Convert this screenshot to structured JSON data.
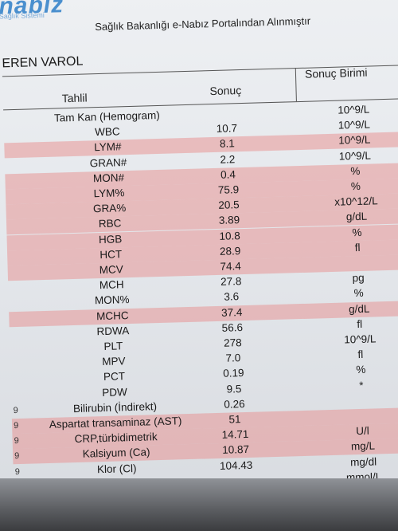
{
  "header": {
    "logo_text": "nabiz",
    "logo_sub": "Sağlık Sistemi",
    "portal_title": "Sağlık Bakanlığı e-Nabız Portalından Alınmıştır"
  },
  "patient": {
    "name": "EREN VAROL"
  },
  "columns": {
    "test": "Tahlil",
    "result": "Sonuç",
    "unit": "Sonuç Birimi"
  },
  "colors": {
    "highlight": "#e79696",
    "logo": "#4a8fce"
  },
  "rows": [
    {
      "name": "Tam Kan (Hemogram)",
      "value": "",
      "unit": "10^9/L",
      "highlight": false
    },
    {
      "name": "WBC",
      "value": "10.7",
      "unit": "10^9/L",
      "highlight": false
    },
    {
      "name": "LYM#",
      "value": "8.1",
      "unit": "10^9/L",
      "highlight": true
    },
    {
      "name": "GRAN#",
      "value": "2.2",
      "unit": "10^9/L",
      "highlight": false
    },
    {
      "name": "MON#",
      "value": "0.4",
      "unit": "%",
      "highlight": true
    },
    {
      "name": "LYM%",
      "value": "75.9",
      "unit": "%",
      "highlight": true
    },
    {
      "name": "GRA%",
      "value": "20.5",
      "unit": "x10^12/L",
      "highlight": true
    },
    {
      "name": "RBC",
      "value": "3.89",
      "unit": "g/dL",
      "highlight": true
    },
    {
      "name": "HGB",
      "value": "10.8",
      "unit": "%",
      "highlight": true
    },
    {
      "name": "HCT",
      "value": "28.9",
      "unit": "fl",
      "highlight": true
    },
    {
      "name": "MCV",
      "value": "74.4",
      "unit": "",
      "highlight": true
    },
    {
      "name": "MCH",
      "value": "27.8",
      "unit": "pg",
      "highlight": false
    },
    {
      "name": "MON%",
      "value": "3.6",
      "unit": "%",
      "highlight": false
    },
    {
      "name": "MCHC",
      "value": "37.4",
      "unit": "g/dL",
      "highlight": true
    },
    {
      "name": "RDWA",
      "value": "56.6",
      "unit": "fl",
      "highlight": false
    },
    {
      "name": "PLT",
      "value": "278",
      "unit": "10^9/L",
      "highlight": false
    },
    {
      "name": "MPV",
      "value": "7.0",
      "unit": "fl",
      "highlight": false
    },
    {
      "name": "PCT",
      "value": "0.19",
      "unit": "%",
      "highlight": false
    },
    {
      "name": "PDW",
      "value": "9.5",
      "unit": "*",
      "highlight": false
    },
    {
      "name": "Bilirubin (İndirekt)",
      "value": "0.26",
      "unit": "",
      "highlight": false
    },
    {
      "name": "Aspartat transaminaz (AST)",
      "value": "51",
      "unit": "",
      "highlight": true
    },
    {
      "name": "CRP,türbidimetrik",
      "value": "14.71",
      "unit": "U/l",
      "highlight": true
    },
    {
      "name": "Kalsiyum (Ca)",
      "value": "10.87",
      "unit": "mg/L",
      "highlight": true
    },
    {
      "name": "Klor (Cl)",
      "value": "104.43",
      "unit": "mg/dl",
      "highlight": false
    },
    {
      "name": "",
      "value": "",
      "unit": "mmol/L",
      "highlight": false
    }
  ],
  "margin_marks": [
    "9",
    "9",
    "9",
    "9",
    "9"
  ]
}
